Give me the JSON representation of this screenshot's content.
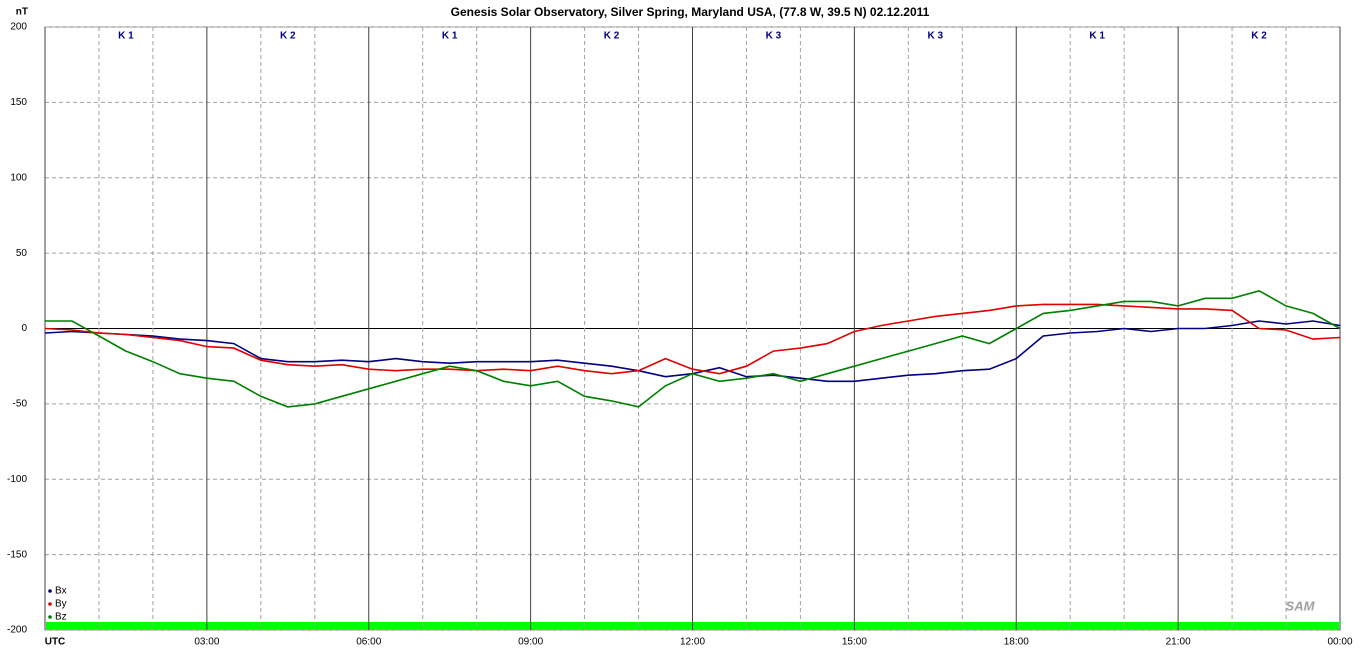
{
  "chart_data": {
    "type": "line",
    "title": "Genesis Solar Observatory, Silver Spring, Maryland USA, (77.8 W, 39.5 N)  02.12.2011",
    "y_label": "nT",
    "logo": "SAM",
    "x": [
      0,
      0.5,
      1,
      1.5,
      2,
      2.5,
      3,
      3.5,
      4,
      4.5,
      5,
      5.5,
      6,
      6.5,
      7,
      7.5,
      8,
      8.5,
      9,
      9.5,
      10,
      10.5,
      11,
      11.5,
      12,
      12.5,
      13,
      13.5,
      14,
      14.5,
      15,
      15.5,
      16,
      16.5,
      17,
      17.5,
      18,
      18.5,
      19,
      19.5,
      20,
      20.5,
      21,
      21.5,
      22,
      22.5,
      23,
      23.5,
      24
    ],
    "series": [
      {
        "name": "Bx",
        "color": "#000080",
        "values": [
          -3,
          -2,
          -3,
          -4,
          -5,
          -7,
          -8,
          -10,
          -20,
          -22,
          -22,
          -21,
          -22,
          -20,
          -22,
          -23,
          -22,
          -22,
          -22,
          -21,
          -23,
          -25,
          -28,
          -32,
          -30,
          -26,
          -32,
          -31,
          -33,
          -35,
          -35,
          -33,
          -31,
          -30,
          -28,
          -27,
          -20,
          -5,
          -3,
          -2,
          0,
          -2,
          0,
          0,
          2,
          5,
          3,
          5,
          2
        ]
      },
      {
        "name": "By",
        "color": "#e00000",
        "values": [
          0,
          -1,
          -3,
          -4,
          -6,
          -8,
          -12,
          -13,
          -21,
          -24,
          -25,
          -24,
          -27,
          -28,
          -27,
          -27,
          -28,
          -27,
          -28,
          -25,
          -28,
          -30,
          -28,
          -20,
          -27,
          -30,
          -25,
          -15,
          -13,
          -10,
          -2,
          2,
          5,
          8,
          10,
          12,
          15,
          16,
          16,
          16,
          15,
          14,
          13,
          13,
          12,
          0,
          -1,
          -7,
          -6
        ]
      },
      {
        "name": "Bz",
        "color": "#008000",
        "values": [
          5,
          5,
          -5,
          -15,
          -22,
          -30,
          -33,
          -35,
          -45,
          -52,
          -50,
          -45,
          -40,
          -35,
          -30,
          -25,
          -28,
          -35,
          -38,
          -35,
          -45,
          -48,
          -52,
          -38,
          -30,
          -35,
          -33,
          -30,
          -35,
          -30,
          -25,
          -20,
          -15,
          -10,
          -5,
          -10,
          0,
          10,
          12,
          15,
          18,
          18,
          15,
          20,
          20,
          25,
          15,
          10,
          0
        ]
      }
    ],
    "xlim": [
      0,
      24
    ],
    "ylim": [
      -200,
      200
    ],
    "xticks": [
      {
        "value": 0,
        "label": "UTC"
      },
      {
        "value": 3,
        "label": "03:00"
      },
      {
        "value": 6,
        "label": "06:00"
      },
      {
        "value": 9,
        "label": "09:00"
      },
      {
        "value": 12,
        "label": "12:00"
      },
      {
        "value": 15,
        "label": "15:00"
      },
      {
        "value": 18,
        "label": "18:00"
      },
      {
        "value": 21,
        "label": "21:00"
      },
      {
        "value": 24,
        "label": "00:00"
      }
    ],
    "xgrid_minor": [
      1,
      2,
      4,
      5,
      7,
      8,
      10,
      11,
      13,
      14,
      16,
      17,
      19,
      20,
      22,
      23
    ],
    "yticks": [
      -200,
      -150,
      -100,
      -50,
      0,
      50,
      100,
      150,
      200
    ],
    "k_index": [
      "K 1",
      "K 2",
      "K 1",
      "K 2",
      "K 3",
      "K 3",
      "K 1",
      "K 2"
    ],
    "grid": true,
    "legend": "bottom-left"
  }
}
